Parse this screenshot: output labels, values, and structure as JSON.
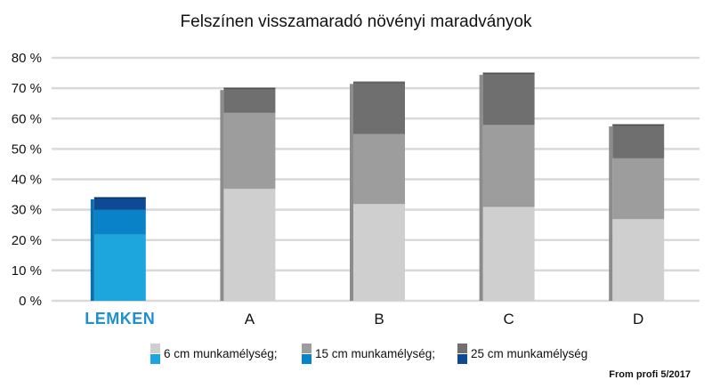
{
  "chart_data": {
    "type": "bar",
    "stacked": true,
    "title": "Felszínen visszamaradó növényi maradványok",
    "categories": [
      "LEMKEN",
      "A",
      "B",
      "C",
      "D"
    ],
    "ylim": [
      0,
      80
    ],
    "yticks": [
      "0 %",
      "10 %",
      "20 %",
      "30 %",
      "40 %",
      "50 %",
      "60 %",
      "70 %",
      "80 %"
    ],
    "ytick_values": [
      0,
      10,
      20,
      30,
      40,
      50,
      60,
      70,
      80
    ],
    "grid": true,
    "legend_position": "bottom",
    "series": [
      {
        "name": "6 cm munkamélység;",
        "values": [
          22,
          37,
          32,
          31,
          27
        ],
        "color": "#cfcfcf",
        "lemken_color": "#1ca6dd"
      },
      {
        "name": "15 cm munkamélység;",
        "values": [
          8,
          25,
          23,
          27,
          20
        ],
        "color": "#9d9d9d",
        "lemken_color": "#0a82c8"
      },
      {
        "name": "25 cm munkamélység",
        "values": [
          4,
          8,
          17,
          17,
          11
        ],
        "color": "#6f6f6f",
        "lemken_color": "#0d4a93"
      }
    ],
    "source": "From profi 5/2017"
  }
}
